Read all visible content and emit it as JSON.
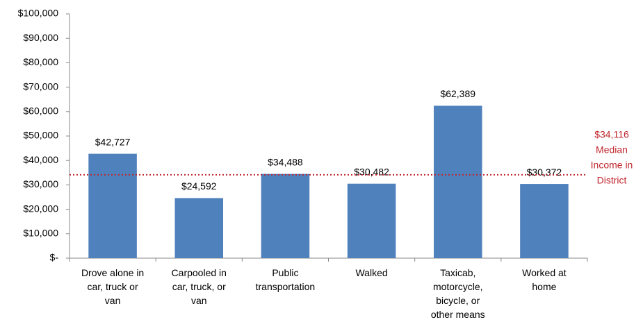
{
  "chart_data": {
    "type": "bar",
    "categories": [
      [
        "Drove alone in",
        "car, truck or",
        "van"
      ],
      [
        "Carpooled in",
        "car, truck, or",
        "van"
      ],
      [
        "Public",
        "transportation"
      ],
      [
        "Walked"
      ],
      [
        "Taxicab,",
        "motorcycle,",
        "bicycle, or",
        "other means"
      ],
      [
        "Worked at",
        "home"
      ]
    ],
    "values": [
      42727,
      24592,
      34488,
      30482,
      62389,
      30372
    ],
    "value_labels": [
      "$42,727",
      "$24,592",
      "$34,488",
      "$30,482",
      "$62,389",
      "$30,372"
    ],
    "color": "#4f81bd",
    "ylim": [
      0,
      100000
    ],
    "yticks": [
      {
        "value": 0,
        "label": "$-"
      },
      {
        "value": 10000,
        "label": "$10,000"
      },
      {
        "value": 20000,
        "label": "$20,000"
      },
      {
        "value": 30000,
        "label": "$30,000"
      },
      {
        "value": 40000,
        "label": "$40,000"
      },
      {
        "value": 50000,
        "label": "$50,000"
      },
      {
        "value": 60000,
        "label": "$60,000"
      },
      {
        "value": 70000,
        "label": "$70,000"
      },
      {
        "value": 80000,
        "label": "$80,000"
      },
      {
        "value": 90000,
        "label": "$90,000"
      },
      {
        "value": 100000,
        "label": "$100,000"
      }
    ],
    "grid": false,
    "reference_line": {
      "value": 34116,
      "label": "$34,116",
      "note": [
        "Median",
        "Income in",
        "District"
      ],
      "color": "#c0262d"
    }
  }
}
